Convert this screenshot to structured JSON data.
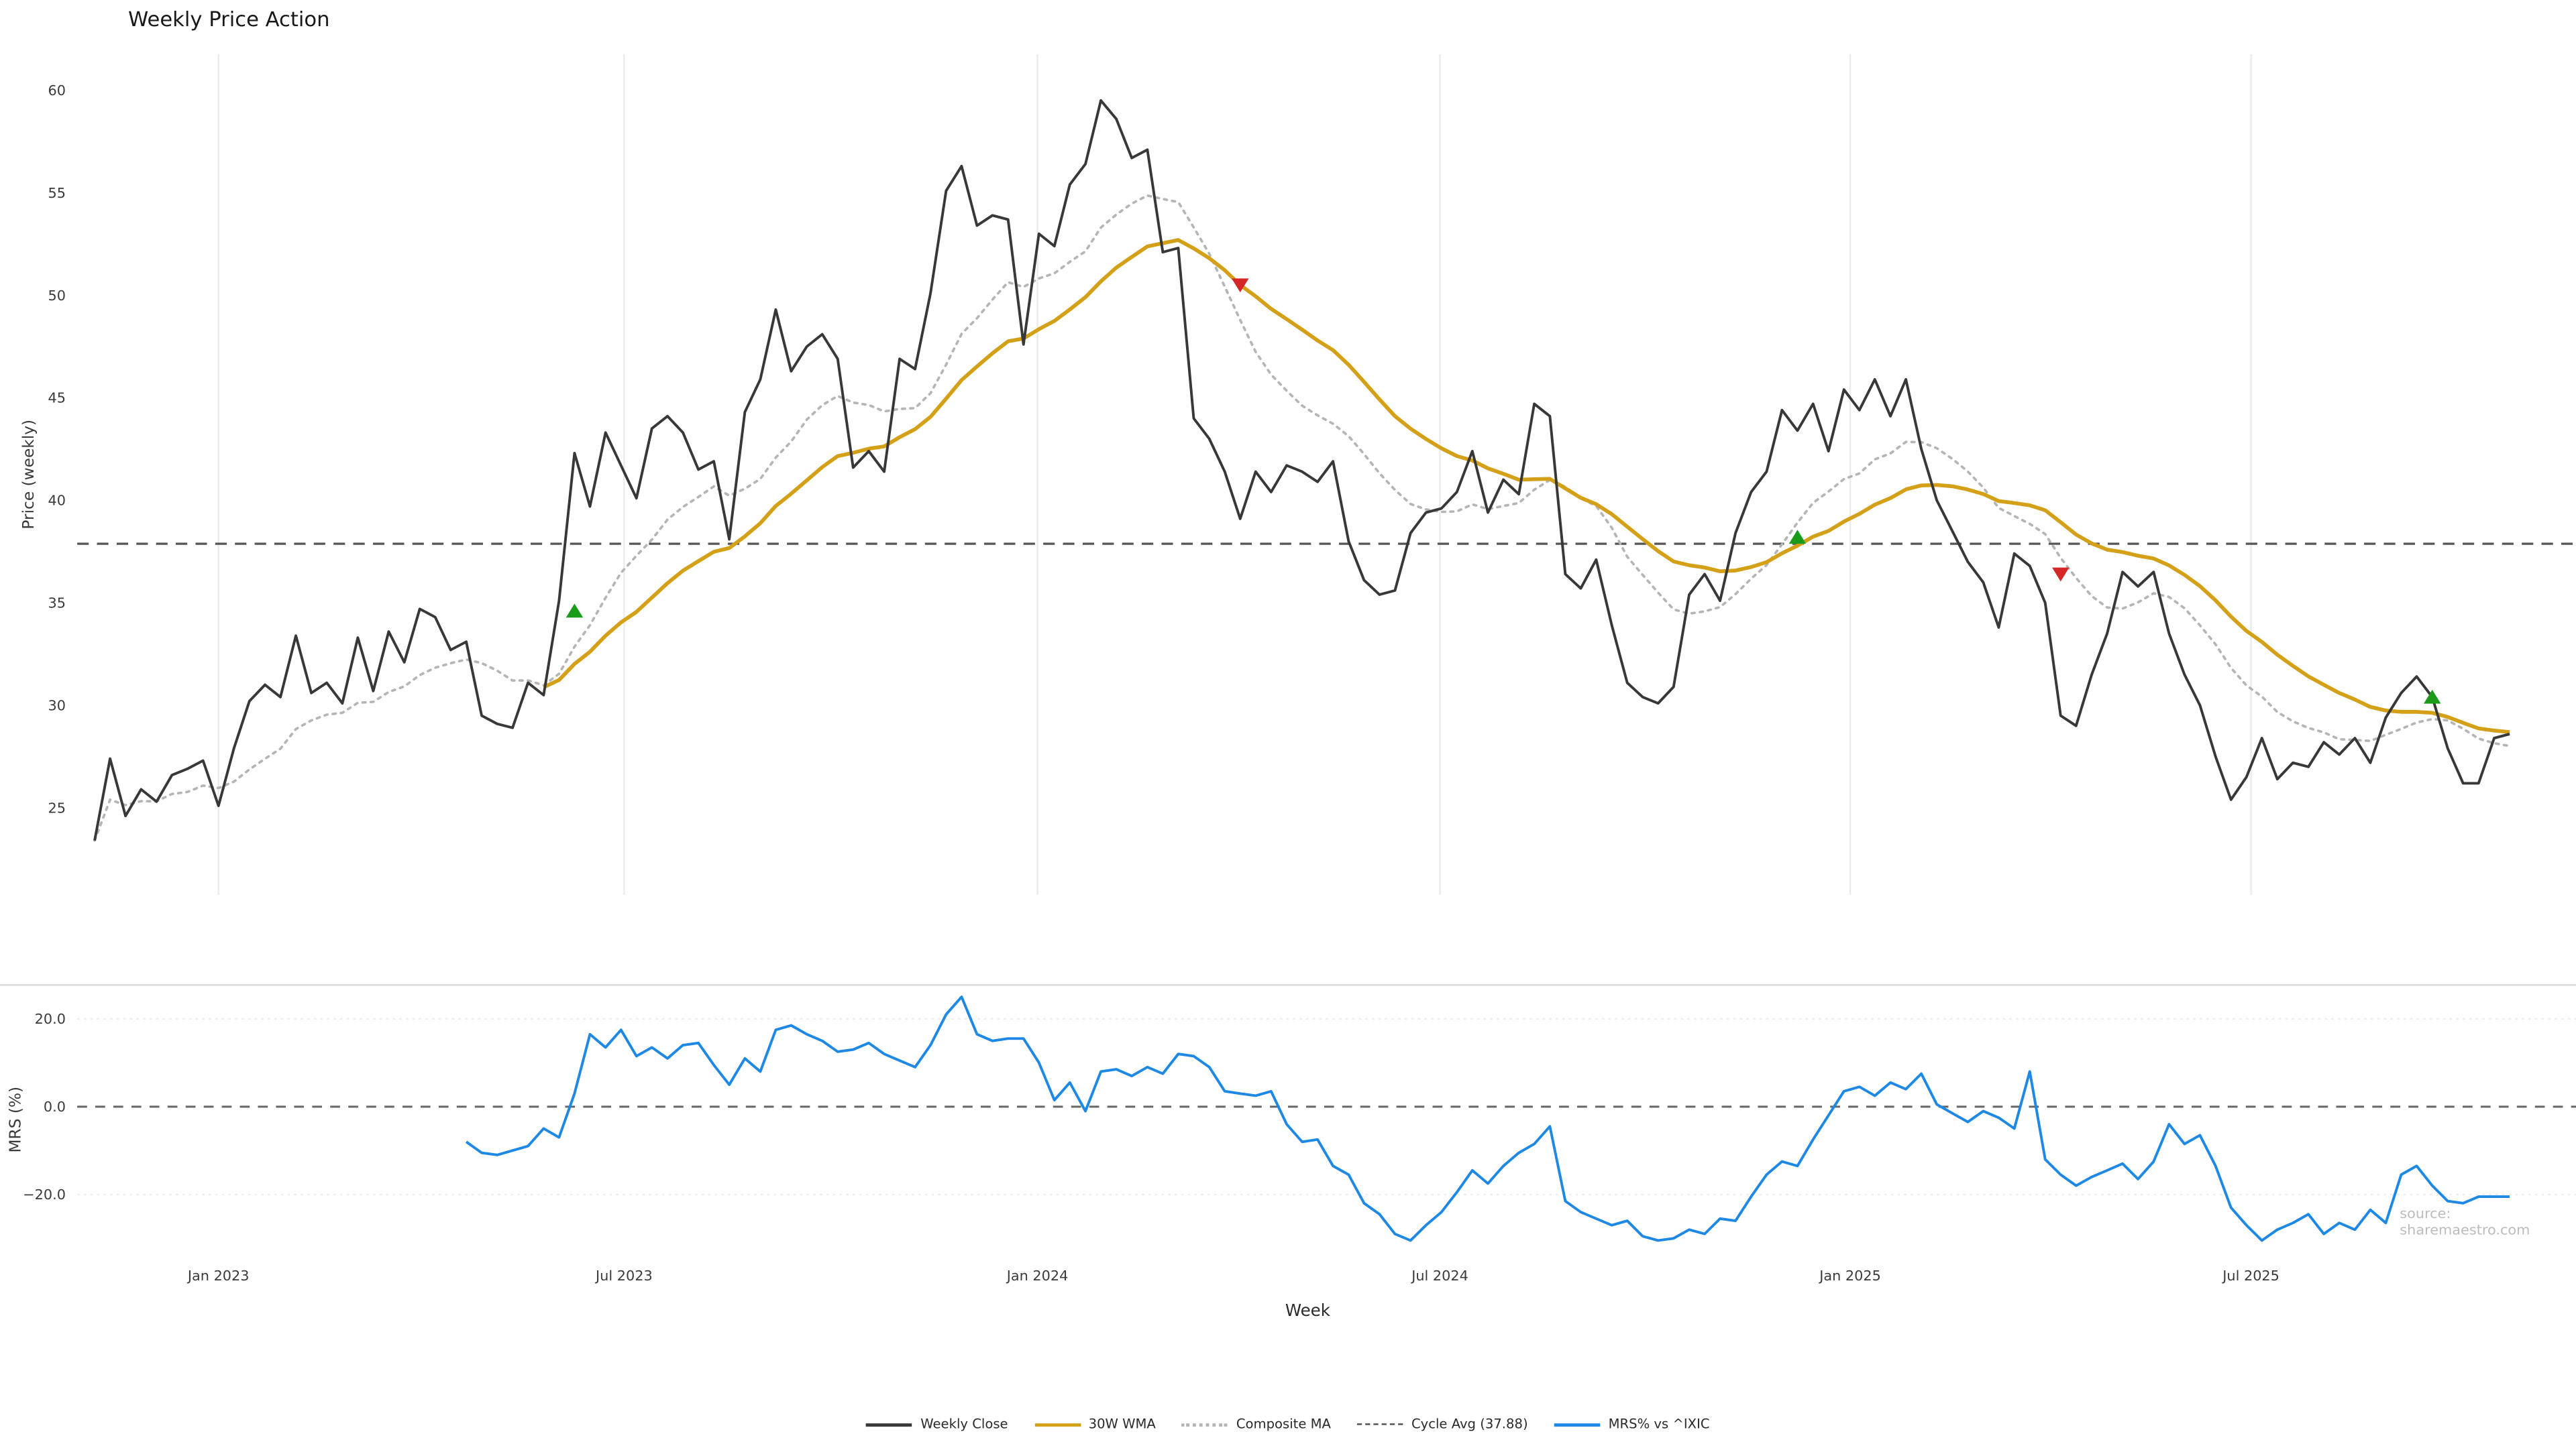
{
  "title": "Weekly Price Action",
  "price_panel": {
    "y_axis_label": "Price (weekly)"
  },
  "mrs_panel": {
    "y_axis_label": "MRS (%)"
  },
  "x_axis": {
    "label": "Week"
  },
  "source_note": "source: sharemaestro.com",
  "legend": {
    "items": [
      {
        "label": "Weekly Close",
        "color": "#383838",
        "line_style": "solid",
        "icon": "weekly-close-line-swatch"
      },
      {
        "label": "30W WMA",
        "color": "#d4a017",
        "line_style": "solid",
        "icon": "wma-line-swatch"
      },
      {
        "label": "Composite MA",
        "color": "#b5b5b5",
        "line_style": "dotted",
        "icon": "composite-ma-line-swatch"
      },
      {
        "label": "Cycle Avg (37.88)",
        "color": "#555555",
        "line_style": "dashed",
        "icon": "cycle-avg-line-swatch"
      },
      {
        "label": "MRS% vs ^IXIC",
        "color": "#1e88e5",
        "line_style": "solid",
        "icon": "mrs-line-swatch"
      }
    ]
  },
  "colors": {
    "weekly_close": "#383838",
    "wma_30w": "#d4a017",
    "composite_ma": "#b5b5b5",
    "cycle_avg": "#555555",
    "mrs": "#1e88e5",
    "buy_marker": "#1a9c1a",
    "sell_marker": "#d62728",
    "gridline": "#ebebeb",
    "panel_spine": "#d9d9d9"
  },
  "chart_data": [
    {
      "type": "line",
      "panel": "price",
      "title": "Weekly Price Action",
      "xlabel": "Week",
      "ylabel": "Price (weekly)",
      "ylim": [
        20.8,
        61.8
      ],
      "x_unit": "week_index",
      "x_ticks": [
        {
          "week": 8,
          "label": "Jan 2023"
        },
        {
          "week": 34.2,
          "label": "Jul 2023"
        },
        {
          "week": 60.9,
          "label": "Jan 2024"
        },
        {
          "week": 86.9,
          "label": "Jul 2024"
        },
        {
          "week": 113.4,
          "label": "Jan 2025"
        },
        {
          "week": 139.3,
          "label": "Jul 2025"
        }
      ],
      "y_ticks": [
        {
          "value": 60,
          "label": "60"
        },
        {
          "value": 55,
          "label": "55"
        },
        {
          "value": 50,
          "label": "50"
        },
        {
          "value": 45,
          "label": "45"
        },
        {
          "value": 40,
          "label": "40"
        },
        {
          "value": 35,
          "label": "35"
        },
        {
          "value": 30,
          "label": "30"
        },
        {
          "value": 25,
          "label": "25"
        }
      ],
      "series": [
        {
          "name": "Weekly Close",
          "color": "#383838",
          "style": "solid",
          "start_week": 0,
          "values": [
            23.4,
            27.4,
            24.6,
            25.9,
            25.3,
            26.6,
            26.9,
            27.3,
            25.1,
            27.9,
            30.2,
            31.0,
            30.4,
            33.4,
            30.6,
            31.1,
            30.1,
            33.3,
            30.7,
            33.6,
            32.1,
            34.7,
            34.3,
            32.7,
            33.1,
            29.5,
            29.1,
            28.9,
            31.1,
            30.5,
            35.1,
            42.3,
            39.7,
            43.3,
            41.7,
            40.1,
            43.5,
            44.1,
            43.3,
            41.5,
            41.9,
            38.1,
            44.3,
            45.9,
            49.3,
            46.3,
            47.5,
            48.1,
            46.9,
            41.6,
            42.4,
            41.4,
            46.9,
            46.4,
            50.1,
            55.1,
            56.3,
            53.4,
            53.9,
            53.7,
            47.6,
            53.0,
            52.4,
            55.4,
            56.4,
            59.5,
            58.6,
            56.7,
            57.1,
            52.1,
            52.3,
            44.0,
            43.0,
            41.4,
            39.1,
            41.4,
            40.4,
            41.7,
            41.4,
            40.9,
            41.9,
            38.0,
            36.1,
            35.4,
            35.6,
            38.4,
            39.4,
            39.6,
            40.4,
            42.4,
            39.4,
            41.0,
            40.3,
            44.7,
            44.1,
            36.4,
            35.7,
            37.1,
            33.9,
            31.1,
            30.4,
            30.1,
            30.9,
            35.4,
            36.4,
            35.1,
            38.4,
            40.4,
            41.4,
            44.4,
            43.4,
            44.7,
            42.4,
            45.4,
            44.4,
            45.9,
            44.1,
            45.9,
            42.5,
            40.0,
            38.5,
            37.0,
            36.0,
            33.8,
            37.4,
            36.8,
            35.0,
            29.5,
            29.0,
            31.5,
            33.5,
            36.5,
            35.8,
            36.5,
            33.5,
            31.5,
            30.0,
            27.5,
            25.4,
            26.5,
            28.4,
            26.4,
            27.2,
            27.0,
            28.2,
            27.6,
            28.4,
            27.2,
            29.4,
            30.6,
            31.4,
            30.4,
            27.9,
            26.2,
            26.2,
            28.4,
            28.6
          ]
        },
        {
          "name": "30W WMA",
          "color": "#d4a017",
          "style": "solid",
          "derived": "weighted_moving_average_30w_of_weekly_close"
        },
        {
          "name": "Composite MA",
          "color": "#b5b5b5",
          "style": "dotted",
          "derived": "mean_of_sma_5_10_20_of_weekly_close"
        },
        {
          "name": "Cycle Avg (37.88)",
          "color": "#555555",
          "style": "dashed",
          "constant": 37.88
        }
      ],
      "markers": {
        "buy": {
          "shape": "triangle-up",
          "color": "#1a9c1a",
          "points": [
            {
              "week": 31,
              "price": 34.6
            },
            {
              "week": 110,
              "price": 38.2
            },
            {
              "week": 151,
              "price": 30.4
            }
          ]
        },
        "sell": {
          "shape": "triangle-down",
          "color": "#d62728",
          "points": [
            {
              "week": 74,
              "price": 50.5
            },
            {
              "week": 127,
              "price": 36.4
            }
          ]
        }
      }
    },
    {
      "type": "line",
      "panel": "mrs",
      "ylabel": "MRS (%)",
      "ylim": [
        -34,
        27.7
      ],
      "zero_line": 0,
      "y_ticks": [
        {
          "value": 20,
          "label": "20.0"
        },
        {
          "value": 0,
          "label": "0.0"
        },
        {
          "value": -20,
          "label": "−20.0"
        }
      ],
      "series": [
        {
          "name": "MRS% vs ^IXIC",
          "color": "#1e88e5",
          "style": "solid",
          "start_week": 24,
          "values": [
            -8,
            -10.5,
            -11,
            -10,
            -9,
            -5,
            -7,
            3,
            16.5,
            13.5,
            17.5,
            11.5,
            13.5,
            11,
            14,
            14.5,
            9.5,
            5,
            11,
            8,
            17.5,
            18.5,
            16.5,
            15,
            12.5,
            13,
            14.5,
            12,
            10.5,
            9,
            14,
            21,
            25,
            16.5,
            15,
            15.5,
            15.5,
            10,
            1.5,
            5.5,
            -1,
            8,
            8.5,
            7,
            9,
            7.5,
            12,
            11.5,
            9,
            3.5,
            3,
            2.5,
            3.5,
            -4,
            -8,
            -7.5,
            -13.5,
            -15.5,
            -22,
            -24.5,
            -29,
            -30.5,
            -27,
            -24,
            -19.5,
            -14.5,
            -17.5,
            -13.5,
            -10.5,
            -8.5,
            -4.5,
            -21.5,
            -24,
            -25.5,
            -27,
            -26,
            -29.5,
            -30.5,
            -30,
            -28,
            -29,
            -25.5,
            -26,
            -20.5,
            -15.5,
            -12.5,
            -13.5,
            -7.5,
            -2,
            3.5,
            4.5,
            2.5,
            5.5,
            4,
            7.5,
            0.5,
            -1.5,
            -3.5,
            -1,
            -2.5,
            -5,
            8,
            -12,
            -15.5,
            -18,
            -16,
            -14.5,
            -13,
            -16.5,
            -12.5,
            -4,
            -8.5,
            -6.5,
            -13.5,
            -23,
            -27,
            -30.5,
            -28,
            -26.5,
            -24.5,
            -29,
            -26.5,
            -28,
            -23.5,
            -26.5,
            -15.5,
            -13.5,
            -18,
            -21.5,
            -22,
            -20.5,
            -20.5,
            -20.5
          ]
        }
      ]
    }
  ]
}
